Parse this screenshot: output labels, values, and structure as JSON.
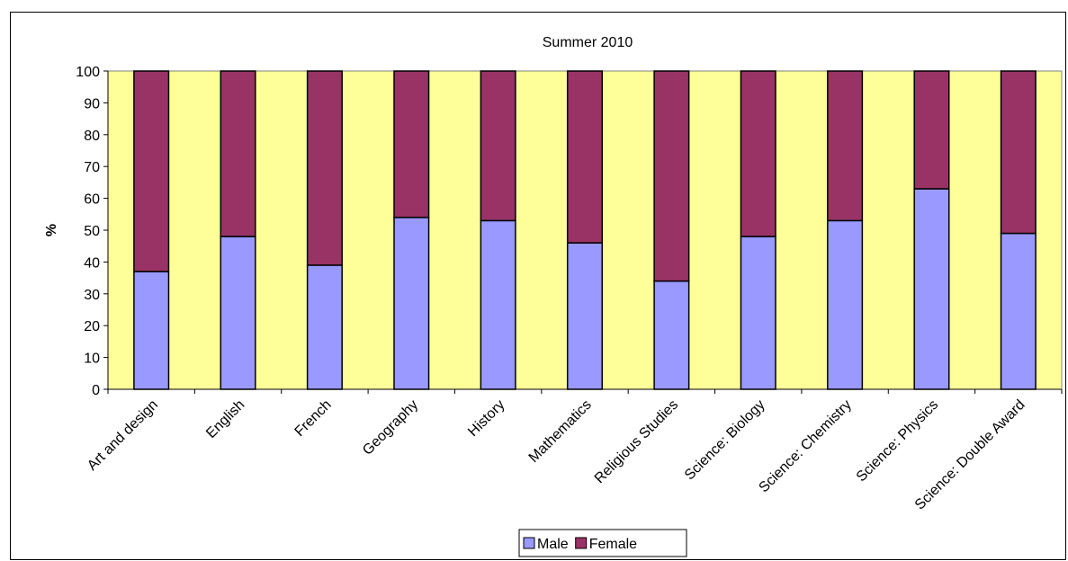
{
  "chart_data": {
    "type": "bar",
    "stacked": true,
    "title": "Summer 2010",
    "xlabel": "",
    "ylabel": "%",
    "ylim": [
      0,
      100
    ],
    "yticks": [
      0,
      10,
      20,
      30,
      40,
      50,
      60,
      70,
      80,
      90,
      100
    ],
    "grid": false,
    "legend_position": "bottom",
    "plot_background": "#FFFF99",
    "categories": [
      "Art and design",
      "English",
      "French",
      "Geography",
      "History",
      "Mathematics",
      "Religious Studies",
      "Science: Biology",
      "Science: Chemistry",
      "Science: Physics",
      "Science: Double Award"
    ],
    "series": [
      {
        "name": "Male",
        "color": "#9999FF",
        "values": [
          37,
          48,
          39,
          54,
          53,
          46,
          34,
          48,
          53,
          63,
          49
        ]
      },
      {
        "name": "Female",
        "color": "#993366",
        "values": [
          63,
          52,
          61,
          46,
          47,
          54,
          66,
          52,
          47,
          37,
          51
        ]
      }
    ]
  }
}
